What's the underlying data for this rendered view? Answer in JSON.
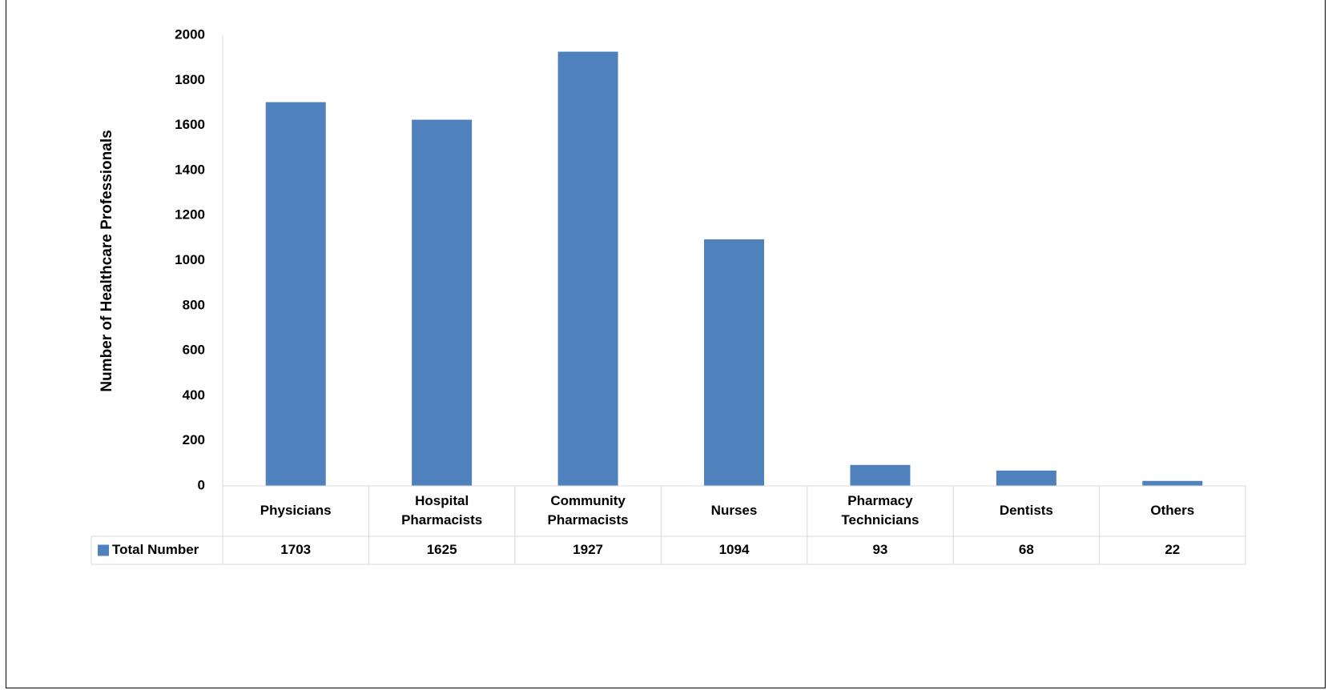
{
  "chart_data": {
    "type": "bar",
    "categories": [
      "Physicians",
      "Hospital Pharmacists",
      "Community Pharmacists",
      "Nurses",
      "Pharmacy Technicians",
      "Dentists",
      "Others"
    ],
    "category_lines": [
      [
        "Physicians"
      ],
      [
        "Hospital",
        "Pharmacists"
      ],
      [
        "Community",
        "Pharmacists"
      ],
      [
        "Nurses"
      ],
      [
        "Pharmacy",
        "Technicians"
      ],
      [
        "Dentists"
      ],
      [
        "Others"
      ]
    ],
    "series": [
      {
        "name": "Total Number",
        "values": [
          1703,
          1625,
          1927,
          1094,
          93,
          68,
          22
        ],
        "color": "#4f81bd"
      }
    ],
    "value_labels": [
      "1703",
      "1625",
      "1927",
      "1094",
      "93",
      "68",
      "22"
    ],
    "ylabel": "Number of Healthcare Professionals",
    "xlabel": "",
    "ylim": [
      0,
      2000
    ],
    "yticks": [
      "0",
      "200",
      "400",
      "600",
      "800",
      "1000",
      "1200",
      "1400",
      "1600",
      "1800",
      "2000"
    ],
    "grid": false,
    "legend": "data table",
    "colors": {
      "bar": "#4f81bd",
      "axis": "#d9d9d9"
    }
  }
}
